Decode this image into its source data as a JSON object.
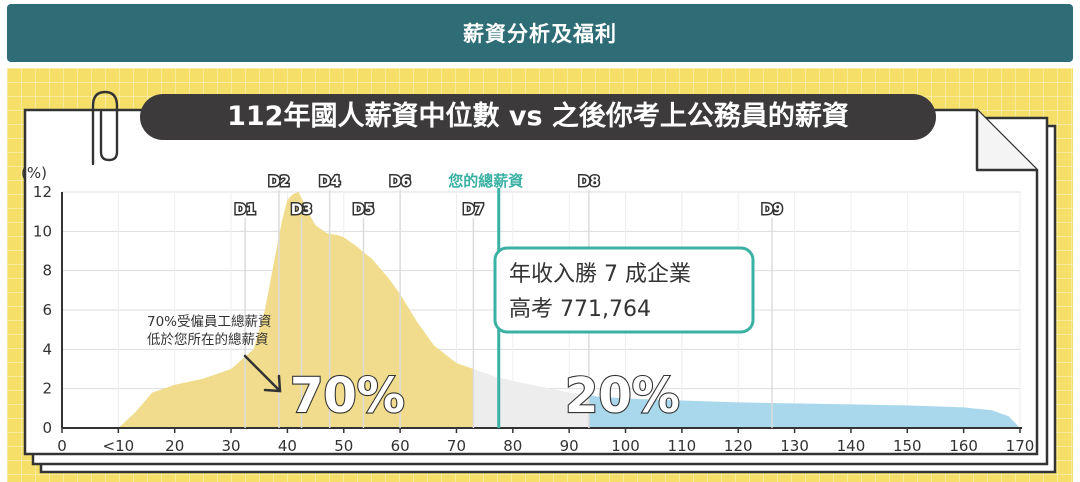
{
  "header": {
    "title": "薪資分析及福利"
  },
  "chart_data": {
    "type": "area",
    "title": "112年國人薪資中位數 vs 之後你考上公務員的薪資",
    "ylabel": "(%)",
    "xlabel": "",
    "ylim": [
      0,
      12
    ],
    "xlim": [
      0,
      170
    ],
    "x_ticks": [
      0,
      10,
      20,
      30,
      40,
      50,
      60,
      70,
      80,
      90,
      100,
      110,
      120,
      130,
      140,
      150,
      160,
      170
    ],
    "x_tick_labels": [
      "0",
      "<10",
      "20",
      "30",
      "40",
      "50",
      "60",
      "70",
      "80",
      "90",
      "100",
      "110",
      "120",
      "130",
      "140",
      "150",
      "160",
      "170"
    ],
    "y_ticks": [
      0,
      2,
      4,
      6,
      8,
      10,
      12
    ],
    "grid": true,
    "distribution": {
      "x": [
        10,
        13,
        16,
        20,
        25,
        30,
        34,
        36,
        38,
        39,
        40,
        41,
        42,
        43,
        44,
        45,
        47,
        49,
        50,
        52,
        55,
        58,
        60,
        63,
        66,
        70,
        73,
        77,
        80,
        85,
        90,
        93,
        95,
        100,
        110,
        120,
        130,
        140,
        150,
        160,
        165,
        168,
        170
      ],
      "y": [
        0,
        0.8,
        1.8,
        2.2,
        2.5,
        3.0,
        4.0,
        6.0,
        9.0,
        10.5,
        11.6,
        11.9,
        12.0,
        11.4,
        10.8,
        10.3,
        9.9,
        9.8,
        9.7,
        9.3,
        8.6,
        7.6,
        6.8,
        5.4,
        4.2,
        3.3,
        3.0,
        2.6,
        2.4,
        2.1,
        1.8,
        1.7,
        1.6,
        1.5,
        1.4,
        1.3,
        1.25,
        1.2,
        1.15,
        1.05,
        0.9,
        0.6,
        0
      ]
    },
    "regions": [
      {
        "from": 10,
        "to": 73,
        "color": "#f0dc8c",
        "label": "70%"
      },
      {
        "from": 73,
        "to": 93.5,
        "color": "#ededed",
        "label": ""
      },
      {
        "from": 93.5,
        "to": 170,
        "color": "#a9d8ec",
        "label": "20%"
      }
    ],
    "deciles": [
      {
        "label": "D1",
        "x": 32.5,
        "row": 2
      },
      {
        "label": "D2",
        "x": 38.5,
        "row": 1
      },
      {
        "label": "D3",
        "x": 42.5,
        "row": 2
      },
      {
        "label": "D4",
        "x": 47.5,
        "row": 1
      },
      {
        "label": "D5",
        "x": 53.5,
        "row": 2
      },
      {
        "label": "D6",
        "x": 60,
        "row": 1
      },
      {
        "label": "D7",
        "x": 73,
        "row": 2
      },
      {
        "label": "D8",
        "x": 93.5,
        "row": 1
      },
      {
        "label": "D9",
        "x": 126,
        "row": 2
      }
    ],
    "your_salary": {
      "label": "您的總薪資",
      "x": 77.5,
      "color": "#3bb1a4"
    },
    "callout": {
      "line1": "年收入勝 7 成企業",
      "line2": "高考 771,764"
    },
    "note": {
      "line1": "70%受僱員工總薪資",
      "line2": "低於您所在的總薪資"
    },
    "colors": {
      "yellow_area": "#f0dc8c",
      "grey_area": "#ededed",
      "blue_area": "#a9d8ec",
      "teal": "#3bb1a4",
      "title_pill": "#3c3a3a",
      "header": "#2f6d76",
      "panel": "#f5df69"
    }
  }
}
